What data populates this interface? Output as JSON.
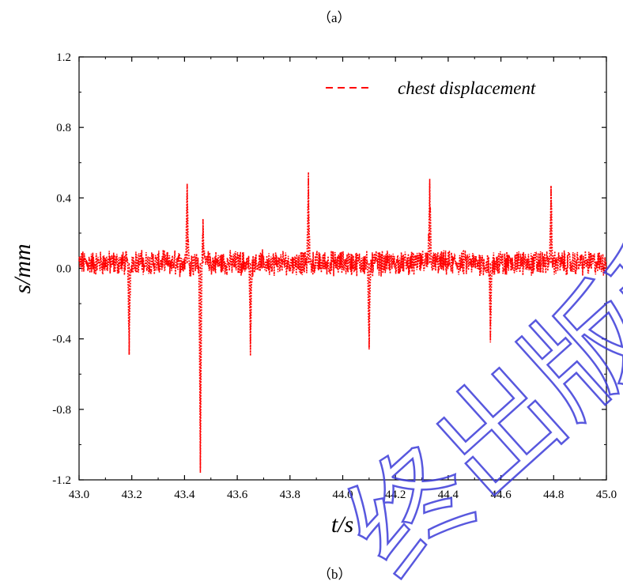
{
  "caption_top": "（a）",
  "caption_bottom": "（b）",
  "watermark_text": "终出版稿",
  "colors": {
    "series": "#ff0000",
    "axis": "#000000",
    "watermark": "#3b3bd9"
  },
  "chart_data": {
    "type": "line",
    "title": "",
    "xlabel": "t/s",
    "ylabel": "s/mm",
    "xlim": [
      43.0,
      45.0
    ],
    "ylim": [
      -1.2,
      1.2
    ],
    "xticks": [
      43.0,
      43.2,
      43.4,
      43.6,
      43.8,
      44.0,
      44.2,
      44.4,
      44.6,
      44.8,
      45.0
    ],
    "xtick_labels": [
      "43.0",
      "43.2",
      "43.4",
      "43.6",
      "43.8",
      "44.0",
      "44.2",
      "44.4",
      "44.6",
      "44.8",
      "45.0"
    ],
    "yticks": [
      -1.2,
      -0.8,
      -0.4,
      0.0,
      0.4,
      0.8,
      1.2
    ],
    "ytick_labels": [
      "-1.2",
      "-0.8",
      "-0.4",
      "0.0",
      "0.4",
      "0.8",
      "1.2"
    ],
    "grid": false,
    "legend_position": "top-right",
    "series": [
      {
        "name": "chest displacement",
        "style": "dashed",
        "baseline": 0.03,
        "noise_amplitude": 0.06,
        "spikes": [
          {
            "x": 43.19,
            "y": -0.49
          },
          {
            "x": 43.41,
            "y": 0.48
          },
          {
            "x": 43.46,
            "y": -1.14
          },
          {
            "x": 43.47,
            "y": 0.28
          },
          {
            "x": 43.65,
            "y": -0.46
          },
          {
            "x": 43.87,
            "y": 0.51
          },
          {
            "x": 44.1,
            "y": -0.46
          },
          {
            "x": 44.33,
            "y": 0.48
          },
          {
            "x": 44.56,
            "y": -0.42
          },
          {
            "x": 44.79,
            "y": 0.47
          }
        ]
      }
    ]
  }
}
